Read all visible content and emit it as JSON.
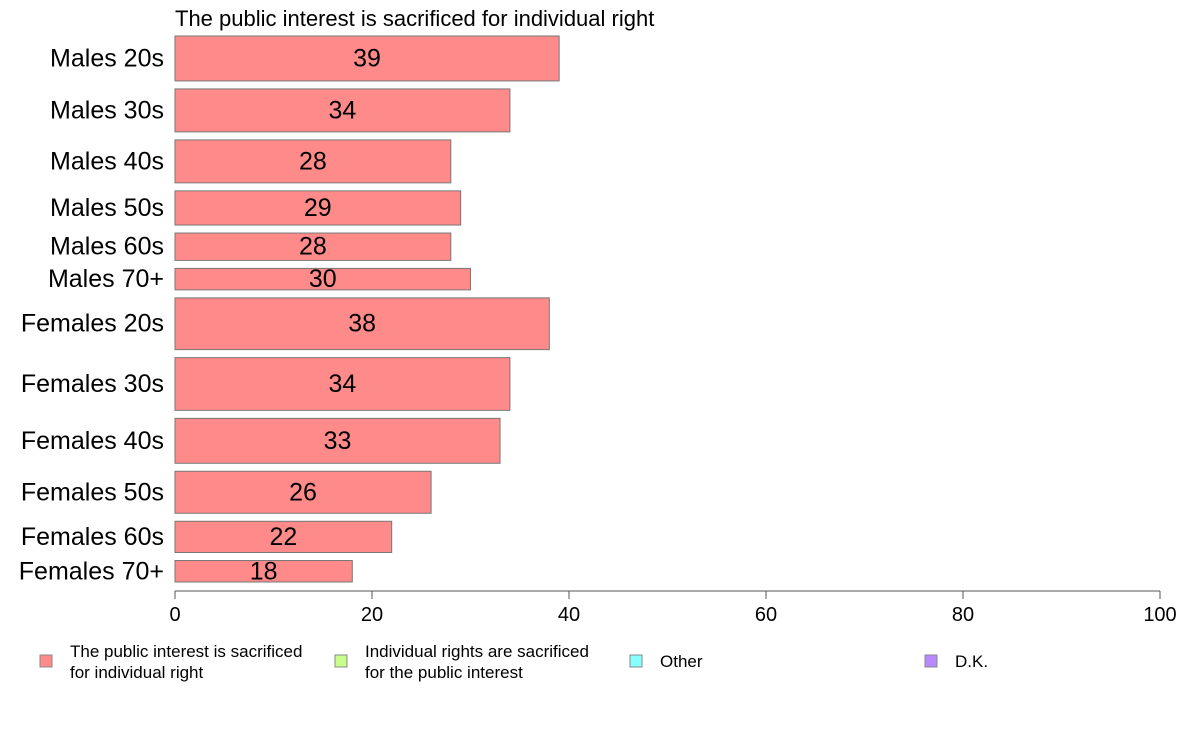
{
  "chart_data": {
    "type": "bar",
    "orientation": "horizontal",
    "title": "The public interest is sacrificed for individual right",
    "xlabel": "",
    "ylabel": "",
    "xlim": [
      0,
      100
    ],
    "x_ticks": [
      0,
      20,
      40,
      60,
      80,
      100
    ],
    "grid": false,
    "legend_position": "bottom",
    "categories": [
      "Males 20s",
      "Males 30s",
      "Males 40s",
      "Males 50s",
      "Males 60s",
      "Males 70+",
      "Females 20s",
      "Females 30s",
      "Females 40s",
      "Females 50s",
      "Females 60s",
      "Females 70+"
    ],
    "series": [
      {
        "name": "The public interest is sacrificed for individual right",
        "color": "#ff8a8a",
        "values": [
          39,
          34,
          28,
          29,
          28,
          30,
          38,
          34,
          33,
          26,
          22,
          18
        ]
      }
    ],
    "bar_weights": [
      46,
      44,
      44,
      35,
      28,
      22,
      53,
      54,
      46,
      43,
      32,
      22
    ],
    "legend": [
      {
        "lines": [
          "The public interest is sacrificed",
          "for individual right"
        ],
        "color": "#ff8a8a",
        "icon": "square"
      },
      {
        "lines": [
          "Individual rights are sacrificed",
          "for the public interest"
        ],
        "color": "#c8ff8a",
        "icon": "square"
      },
      {
        "lines": [
          "Other"
        ],
        "color": "#8affff",
        "icon": "square"
      },
      {
        "lines": [
          "D.K."
        ],
        "color": "#b88aff",
        "icon": "square"
      }
    ]
  }
}
